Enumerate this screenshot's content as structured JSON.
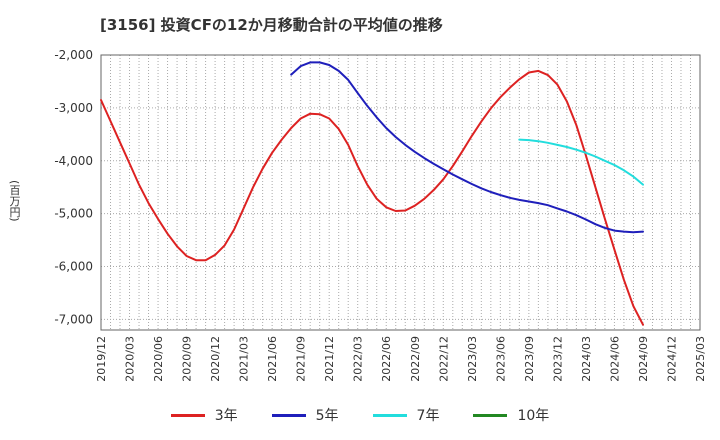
{
  "chart_data": {
    "type": "line",
    "title": "[3156]  投資CFの12か月移動合計の平均値の推移",
    "xlabel": "",
    "ylabel": "(百万円)",
    "ylim": [
      -7200,
      -2000
    ],
    "yticks": [
      -2000,
      -3000,
      -4000,
      -5000,
      -6000,
      -7000
    ],
    "ytick_labels": [
      "-2,000",
      "-3,000",
      "-4,000",
      "-5,000",
      "-6,000",
      "-7,000"
    ],
    "xlim": [
      "2019-12",
      "2025-03"
    ],
    "xtick_labels": [
      "2019/12",
      "2020/03",
      "2020/06",
      "2020/09",
      "2020/12",
      "2021/03",
      "2021/06",
      "2021/09",
      "2021/12",
      "2022/03",
      "2022/06",
      "2022/09",
      "2022/12",
      "2023/03",
      "2023/06",
      "2023/09",
      "2023/12",
      "2024/03",
      "2024/06",
      "2024/09",
      "2024/12",
      "2025/03"
    ],
    "grid": true,
    "legend_position": "bottom",
    "series": [
      {
        "name": "3年",
        "color": "#dd2222",
        "x": [
          "2019-12",
          "2020-01",
          "2020-02",
          "2020-03",
          "2020-04",
          "2020-05",
          "2020-06",
          "2020-07",
          "2020-08",
          "2020-09",
          "2020-10",
          "2020-11",
          "2020-12",
          "2021-01",
          "2021-02",
          "2021-03",
          "2021-04",
          "2021-05",
          "2021-06",
          "2021-07",
          "2021-08",
          "2021-09",
          "2021-10",
          "2021-11",
          "2021-12",
          "2022-01",
          "2022-02",
          "2022-03",
          "2022-04",
          "2022-05",
          "2022-06",
          "2022-07",
          "2022-08",
          "2022-09",
          "2022-10",
          "2022-11",
          "2022-12",
          "2023-01",
          "2023-02",
          "2023-03",
          "2023-04",
          "2023-05",
          "2023-06",
          "2023-07",
          "2023-08",
          "2023-09",
          "2023-10",
          "2023-11",
          "2023-12",
          "2024-01",
          "2024-02",
          "2024-03",
          "2024-04",
          "2024-05",
          "2024-06",
          "2024-07",
          "2024-08",
          "2024-09"
        ],
        "values": [
          -2850,
          -3250,
          -3650,
          -4050,
          -4450,
          -4800,
          -5100,
          -5380,
          -5620,
          -5800,
          -5880,
          -5880,
          -5780,
          -5600,
          -5300,
          -4900,
          -4500,
          -4150,
          -3850,
          -3600,
          -3380,
          -3200,
          -3110,
          -3120,
          -3200,
          -3400,
          -3700,
          -4100,
          -4450,
          -4720,
          -4880,
          -4950,
          -4940,
          -4850,
          -4720,
          -4550,
          -4350,
          -4100,
          -3820,
          -3530,
          -3260,
          -3010,
          -2800,
          -2620,
          -2460,
          -2330,
          -2300,
          -2380,
          -2560,
          -2880,
          -3330,
          -3900,
          -4500,
          -5100,
          -5680,
          -6250,
          -6750,
          -7100
        ]
      },
      {
        "name": "5年",
        "color": "#1f1fbb",
        "x": [
          "2021-08",
          "2021-09",
          "2021-10",
          "2021-11",
          "2021-12",
          "2022-01",
          "2022-02",
          "2022-03",
          "2022-04",
          "2022-05",
          "2022-06",
          "2022-07",
          "2022-08",
          "2022-09",
          "2022-10",
          "2022-11",
          "2022-12",
          "2023-01",
          "2023-02",
          "2023-03",
          "2023-04",
          "2023-05",
          "2023-06",
          "2023-07",
          "2023-08",
          "2023-09",
          "2023-10",
          "2023-11",
          "2023-12",
          "2024-01",
          "2024-02",
          "2024-03",
          "2024-04",
          "2024-05",
          "2024-06",
          "2024-07",
          "2024-08",
          "2024-09"
        ],
        "values": [
          -2370,
          -2210,
          -2140,
          -2140,
          -2190,
          -2300,
          -2470,
          -2720,
          -2960,
          -3180,
          -3380,
          -3550,
          -3700,
          -3830,
          -3950,
          -4060,
          -4160,
          -4260,
          -4350,
          -4440,
          -4520,
          -4590,
          -4650,
          -4700,
          -4740,
          -4770,
          -4800,
          -4840,
          -4900,
          -4960,
          -5030,
          -5110,
          -5200,
          -5270,
          -5320,
          -5340,
          -5350,
          -5340
        ]
      },
      {
        "name": "7年",
        "color": "#22dddd",
        "x": [
          "2023-08",
          "2023-09",
          "2023-10",
          "2023-11",
          "2023-12",
          "2024-01",
          "2024-02",
          "2024-03",
          "2024-04",
          "2024-05",
          "2024-06",
          "2024-07",
          "2024-08",
          "2024-09"
        ],
        "values": [
          -3600,
          -3610,
          -3630,
          -3660,
          -3700,
          -3740,
          -3790,
          -3850,
          -3920,
          -4000,
          -4080,
          -4180,
          -4300,
          -4450
        ]
      },
      {
        "name": "10年",
        "color": "#228822",
        "x": [],
        "values": []
      }
    ]
  }
}
